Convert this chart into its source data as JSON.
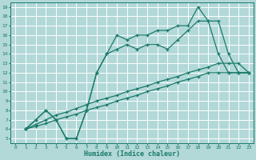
{
  "xlabel": "Humidex (Indice chaleur)",
  "bg_color": "#b2d8d8",
  "grid_color": "#ffffff",
  "line_color": "#1a7a6a",
  "xlim": [
    -0.5,
    23.5
  ],
  "ylim": [
    4.5,
    19.5
  ],
  "xticks": [
    0,
    1,
    2,
    3,
    4,
    5,
    6,
    7,
    8,
    9,
    10,
    11,
    12,
    13,
    14,
    15,
    16,
    17,
    18,
    19,
    20,
    21,
    22,
    23
  ],
  "yticks": [
    5,
    6,
    7,
    8,
    9,
    10,
    11,
    12,
    13,
    14,
    15,
    16,
    17,
    18,
    19
  ],
  "lines": [
    {
      "x": [
        1,
        2,
        3,
        4,
        5,
        6,
        7,
        8,
        9,
        10,
        11,
        12,
        13,
        14,
        15,
        16,
        17,
        18,
        19,
        20,
        21,
        22,
        23
      ],
      "y": [
        6,
        6.3,
        6.6,
        7,
        7.3,
        7.6,
        8,
        8.3,
        8.6,
        9,
        9.3,
        9.6,
        10,
        10.3,
        10.6,
        11,
        11.3,
        11.6,
        12,
        12,
        12,
        12,
        12
      ]
    },
    {
      "x": [
        1,
        2,
        3,
        4,
        5,
        6,
        7,
        8,
        9,
        10,
        11,
        12,
        13,
        14,
        15,
        16,
        17,
        18,
        19,
        20,
        21,
        22,
        23
      ],
      "y": [
        6,
        6.5,
        7,
        7.5,
        7.8,
        8.2,
        8.6,
        9,
        9.3,
        9.6,
        10,
        10.3,
        10.6,
        11,
        11.3,
        11.6,
        12,
        12.3,
        12.6,
        13,
        13,
        13,
        12
      ]
    },
    {
      "x": [
        1,
        2,
        3,
        4,
        5,
        6,
        7,
        8,
        9,
        10,
        11,
        12,
        13,
        14,
        15,
        16,
        17,
        18,
        19,
        20,
        21,
        22,
        23
      ],
      "y": [
        6,
        7,
        8,
        7,
        5,
        5,
        8,
        12,
        14,
        14.5,
        15,
        14.5,
        15,
        15,
        14.5,
        15.5,
        16.5,
        17.5,
        17.5,
        14,
        12,
        12,
        12
      ]
    },
    {
      "x": [
        1,
        2,
        3,
        4,
        5,
        6,
        7,
        8,
        9,
        10,
        11,
        12,
        13,
        14,
        15,
        16,
        17,
        18,
        19,
        20,
        21,
        22,
        23
      ],
      "y": [
        6,
        7,
        8,
        7,
        5,
        5,
        8,
        12,
        14,
        16,
        15.5,
        16,
        16,
        16.5,
        16.5,
        17,
        17,
        19,
        17.5,
        17.5,
        14,
        12,
        12
      ]
    }
  ]
}
